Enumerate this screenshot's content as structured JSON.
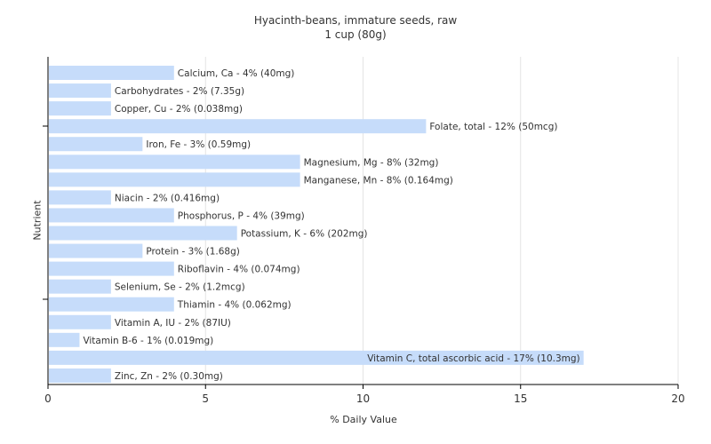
{
  "chart_data": {
    "type": "bar",
    "orientation": "horizontal",
    "title": "Hyacinth-beans, immature seeds, raw",
    "subtitle": "1 cup (80g)",
    "xlabel": "% Daily Value",
    "ylabel": "Nutrient",
    "xlim": [
      0,
      20
    ],
    "xticks": [
      0,
      5,
      10,
      15,
      20
    ],
    "grid": true,
    "bar_color": "#c6dcfa",
    "categories": [
      "Calcium, Ca",
      "Carbohydrates",
      "Copper, Cu",
      "Folate, total",
      "Iron, Fe",
      "Magnesium, Mg",
      "Manganese, Mn",
      "Niacin",
      "Phosphorus, P",
      "Potassium, K",
      "Protein",
      "Riboflavin",
      "Selenium, Se",
      "Thiamin",
      "Vitamin A, IU",
      "Vitamin B-6",
      "Vitamin C, total ascorbic acid",
      "Zinc, Zn"
    ],
    "values": [
      4,
      2,
      2,
      12,
      3,
      8,
      8,
      2,
      4,
      6,
      3,
      4,
      2,
      4,
      2,
      1,
      17,
      2
    ],
    "labels": [
      "Calcium, Ca - 4% (40mg)",
      "Carbohydrates - 2% (7.35g)",
      "Copper, Cu - 2% (0.038mg)",
      "Folate, total - 12% (50mcg)",
      "Iron, Fe - 3% (0.59mg)",
      "Magnesium, Mg - 8% (32mg)",
      "Manganese, Mn - 8% (0.164mg)",
      "Niacin - 2% (0.416mg)",
      "Phosphorus, P - 4% (39mg)",
      "Potassium, K - 6% (202mg)",
      "Protein - 3% (1.68g)",
      "Riboflavin - 4% (0.074mg)",
      "Selenium, Se - 2% (1.2mcg)",
      "Thiamin - 4% (0.062mg)",
      "Vitamin A, IU - 2% (87IU)",
      "Vitamin B-6 - 1% (0.019mg)",
      "Vitamin C, total ascorbic acid - 17% (10.3mg)",
      "Zinc, Zn - 2% (0.30mg)"
    ]
  }
}
